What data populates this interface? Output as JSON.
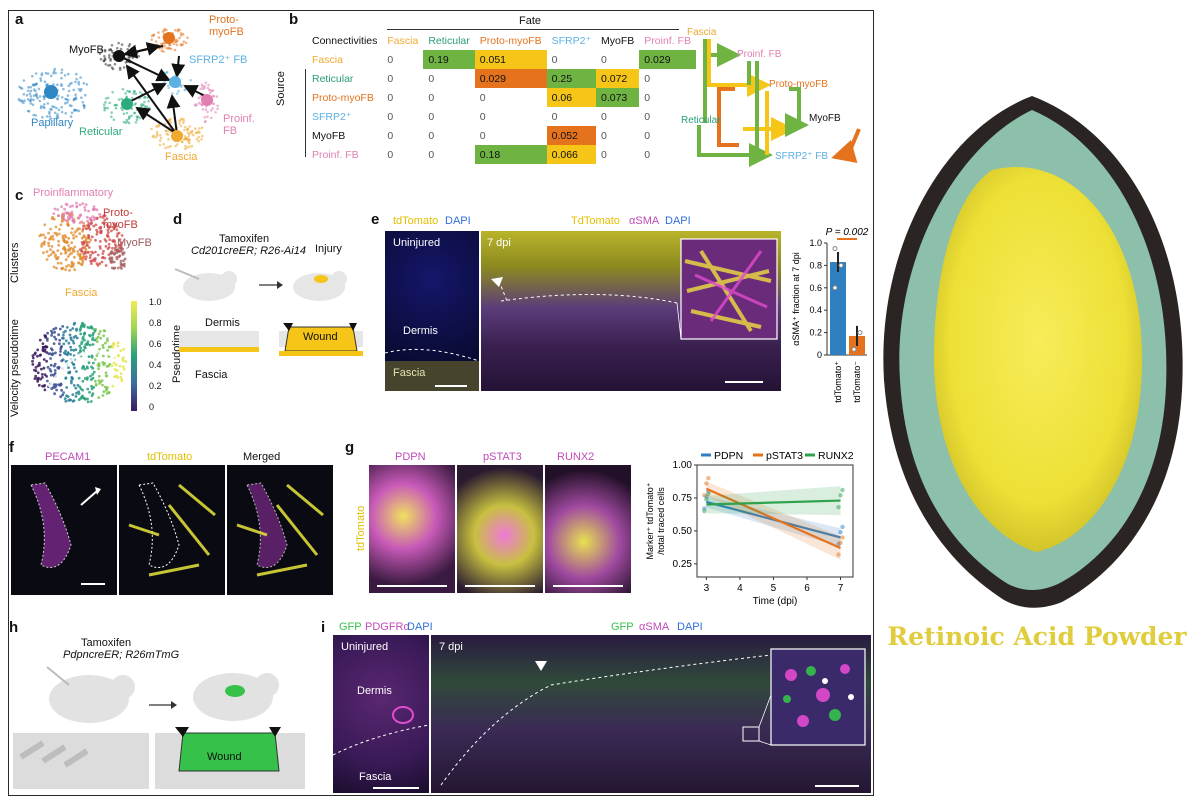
{
  "panels": {
    "a": "a",
    "b": "b",
    "c": "c",
    "d": "d",
    "e": "e",
    "f": "f",
    "g": "g",
    "h": "h",
    "i": "i"
  },
  "panel_a": {
    "clusters": [
      {
        "key": "myofb",
        "label": "MyoFB",
        "color": "#111111"
      },
      {
        "key": "proto",
        "label": "Proto-\nmyoFB",
        "color": "#e5731e"
      },
      {
        "key": "sfrp2",
        "label": "SFRP2⁺ FB",
        "color": "#5bb1e2"
      },
      {
        "key": "proinf",
        "label": "Proinf.\nFB",
        "color": "#e07fb2"
      },
      {
        "key": "papillary",
        "label": "Papillary",
        "color": "#2f86c4"
      },
      {
        "key": "reticular",
        "label": "Reticular",
        "color": "#2eab7c"
      },
      {
        "key": "fascia",
        "label": "Fascia",
        "color": "#f0a830"
      }
    ]
  },
  "panel_b": {
    "header_fate": "Fate",
    "corner": "Connectivities",
    "source_label": "Source",
    "columns": [
      {
        "label": "Fascia",
        "color": "#f0a830"
      },
      {
        "label": "Reticular",
        "color": "#2a9d7a"
      },
      {
        "label": "Proto-myoFB",
        "color": "#e5731e"
      },
      {
        "label": "SFRP2⁺",
        "color": "#5bb1e2"
      },
      {
        "label": "MyoFB",
        "color": "#111111"
      },
      {
        "label": "Proinf. FB",
        "color": "#e07fb2"
      }
    ],
    "rows": [
      {
        "label": "Fascia",
        "color": "#f0a830",
        "cells": [
          "0",
          "0.19",
          "0.051",
          "0",
          "0",
          "0.029"
        ],
        "fills": [
          "",
          "#6fb443",
          "#f5c518",
          "",
          "",
          "#6fb443"
        ]
      },
      {
        "label": "Reticular",
        "color": "#2a9d7a",
        "cells": [
          "0",
          "0",
          "0.029",
          "0.25",
          "0.072",
          "0"
        ],
        "fills": [
          "",
          "",
          "#e5731e",
          "#6fb443",
          "#f5c518",
          ""
        ]
      },
      {
        "label": "Proto-myoFB",
        "color": "#e5731e",
        "cells": [
          "0",
          "0",
          "0",
          "0.06",
          "0.073",
          "0"
        ],
        "fills": [
          "",
          "",
          "",
          "#f5c518",
          "#6fb443",
          ""
        ]
      },
      {
        "label": "SFRP2⁺",
        "color": "#5bb1e2",
        "cells": [
          "0",
          "0",
          "0",
          "0",
          "0",
          "0"
        ],
        "fills": [
          "",
          "",
          "",
          "",
          "",
          ""
        ]
      },
      {
        "label": "MyoFB",
        "color": "#111111",
        "cells": [
          "0",
          "0",
          "0",
          "0.052",
          "0",
          "0"
        ],
        "fills": [
          "",
          "",
          "",
          "#e5731e",
          "",
          ""
        ]
      },
      {
        "label": "Proinf. FB",
        "color": "#e07fb2",
        "cells": [
          "0",
          "0",
          "0.18",
          "0.066",
          "0",
          "0"
        ],
        "fills": [
          "",
          "",
          "#6fb443",
          "#f5c518",
          "",
          ""
        ]
      }
    ],
    "flow_labels": {
      "fascia": "Fascia",
      "proinf": "Proinf. FB",
      "proto": "Proto-myoFB",
      "reticular": "Reticular",
      "myofb": "MyoFB",
      "sfrp2": "SFRP2⁺ FB"
    }
  },
  "panel_c": {
    "labels": {
      "proinflammatory": "Proinflammatory",
      "proto": "Proto-\nmyoFB",
      "myofb": "MyoFB",
      "fascia": "Fascia",
      "clusters": "Clusters",
      "velocity": "Velocity pseudotime",
      "pseudotime": "Pseudotime"
    },
    "colorbar_ticks": [
      "1.0",
      "0.8",
      "0.6",
      "0.4",
      "0.2",
      "0"
    ]
  },
  "panel_d": {
    "tamoxifen": "Tamoxifen",
    "genotype": "Cd201creER; R26-Ai14",
    "injury": "Injury",
    "dermis": "Dermis",
    "wound": "Wound",
    "fascia": "Fascia"
  },
  "panel_e": {
    "left_header_a": "tdTomato",
    "left_header_b": "DAPI",
    "right_header_a": "TdTomato",
    "right_header_b": "αSMA",
    "right_header_c": "DAPI",
    "uninjured": "Uninjured",
    "dermis": "Dermis",
    "fascia": "Fascia",
    "dpi": "7 dpi",
    "bar_chart": {
      "p_value": "P = 0.002",
      "ylabel": "αSMA⁺ fraction at 7 dpi",
      "yticks": [
        "1.0",
        "0.8",
        "0.6",
        "0.4",
        "0.2",
        "0"
      ],
      "categories": [
        "tdTomato⁺",
        "tdTomato⁻"
      ]
    }
  },
  "panel_f": {
    "titles": [
      "PECAM1",
      "tdTomato",
      "Merged"
    ]
  },
  "panel_g": {
    "side_label": "tdTomato",
    "titles": [
      "PDPN",
      "pSTAT3",
      "RUNX2"
    ],
    "line_chart": {
      "legend": [
        "PDPN",
        "pSTAT3",
        "RUNX2"
      ],
      "ylabel": "Marker⁺ tdTomato⁺\n/total traced cells",
      "xlabel": "Time (dpi)",
      "yticks": [
        "1.00",
        "0.75",
        "0.50",
        "0.25"
      ],
      "xticks": [
        "3",
        "4",
        "5",
        "6",
        "7"
      ]
    }
  },
  "panel_h": {
    "tamoxifen": "Tamoxifen",
    "genotype": "PdpncreER; R26mTmG",
    "wound": "Wound"
  },
  "panel_i": {
    "left_header_a": "GFP",
    "left_header_b": "PDGFRα",
    "left_header_c": "DAPI",
    "right_header_a": "GFP",
    "right_header_b": "αSMA",
    "right_header_c": "DAPI",
    "uninjured": "Uninjured",
    "dermis": "Dermis",
    "fascia": "Fascia",
    "dpi": "7 dpi"
  },
  "product": {
    "title": "Retinoic Acid Powder"
  },
  "colors": {
    "accent": "#e0cd3e",
    "bowl": "#7fb9a4",
    "powder": "#f2e33a"
  },
  "chart_data": [
    {
      "type": "bar",
      "panel": "e",
      "categories": [
        "tdTomato⁺",
        "tdTomato⁻"
      ],
      "values": [
        0.83,
        0.17
      ],
      "ylabel": "αSMA⁺ fraction at 7 dpi",
      "ylim": [
        0,
        1.0
      ],
      "annotation": "P = 0.002"
    },
    {
      "type": "line",
      "panel": "g",
      "x": [
        3,
        7
      ],
      "series": [
        {
          "name": "PDPN",
          "values": [
            0.72,
            0.45
          ],
          "color": "#2f7fc1"
        },
        {
          "name": "pSTAT3",
          "values": [
            0.82,
            0.37
          ],
          "color": "#e5731e"
        },
        {
          "name": "RUNX2",
          "values": [
            0.7,
            0.73
          ],
          "color": "#2ea24d"
        }
      ],
      "xlabel": "Time (dpi)",
      "ylabel": "Marker⁺ tdTomato⁺\n/total traced cells",
      "ylim": [
        0.15,
        1.0
      ],
      "xlim": [
        3,
        7
      ]
    }
  ]
}
